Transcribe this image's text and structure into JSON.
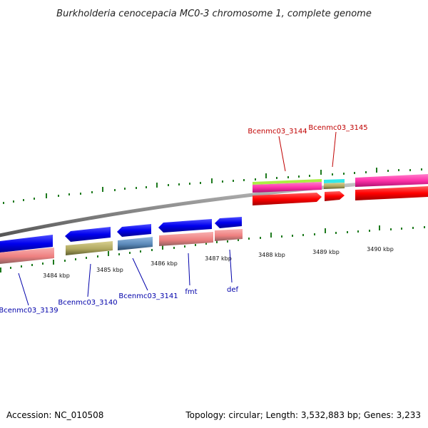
{
  "title": "Burkholderia cenocepacia MC0-3 chromosome 1, complete genome",
  "accession_text": "Accession: NC_010508",
  "topology_text": "Topology: circular; Length: 3,532,883 bp; Genes: 3,233",
  "tick_labels": [
    "3484 kbp",
    "3485 kbp",
    "3486 kbp",
    "3487 kbp",
    "3488 kbp",
    "3489 kbp",
    "3490 kbp"
  ],
  "gene_labels_forward": [
    "Bcenmc03_3144",
    "Bcenmc03_3145"
  ],
  "gene_labels_reverse": [
    "Bcenmc03_3139",
    "Bcenmc03_3140",
    "Bcenmc03_3141",
    "fmt",
    "def"
  ],
  "colors": {
    "backbone": "#8c8c8c",
    "tick_green": "#1e7a1e",
    "forward_red": "#ff0000",
    "forward_magenta": "#ff33aa",
    "reverse_blue": "#0000ee",
    "reverse_pink": "#ee8080",
    "cog_olive": "#b0a860",
    "cog_steel": "#5a88b8",
    "cog_cyan": "#33e8e8",
    "cog_lime": "#aaee44",
    "label_red": "#c00000",
    "label_blue": "#0000aa"
  }
}
